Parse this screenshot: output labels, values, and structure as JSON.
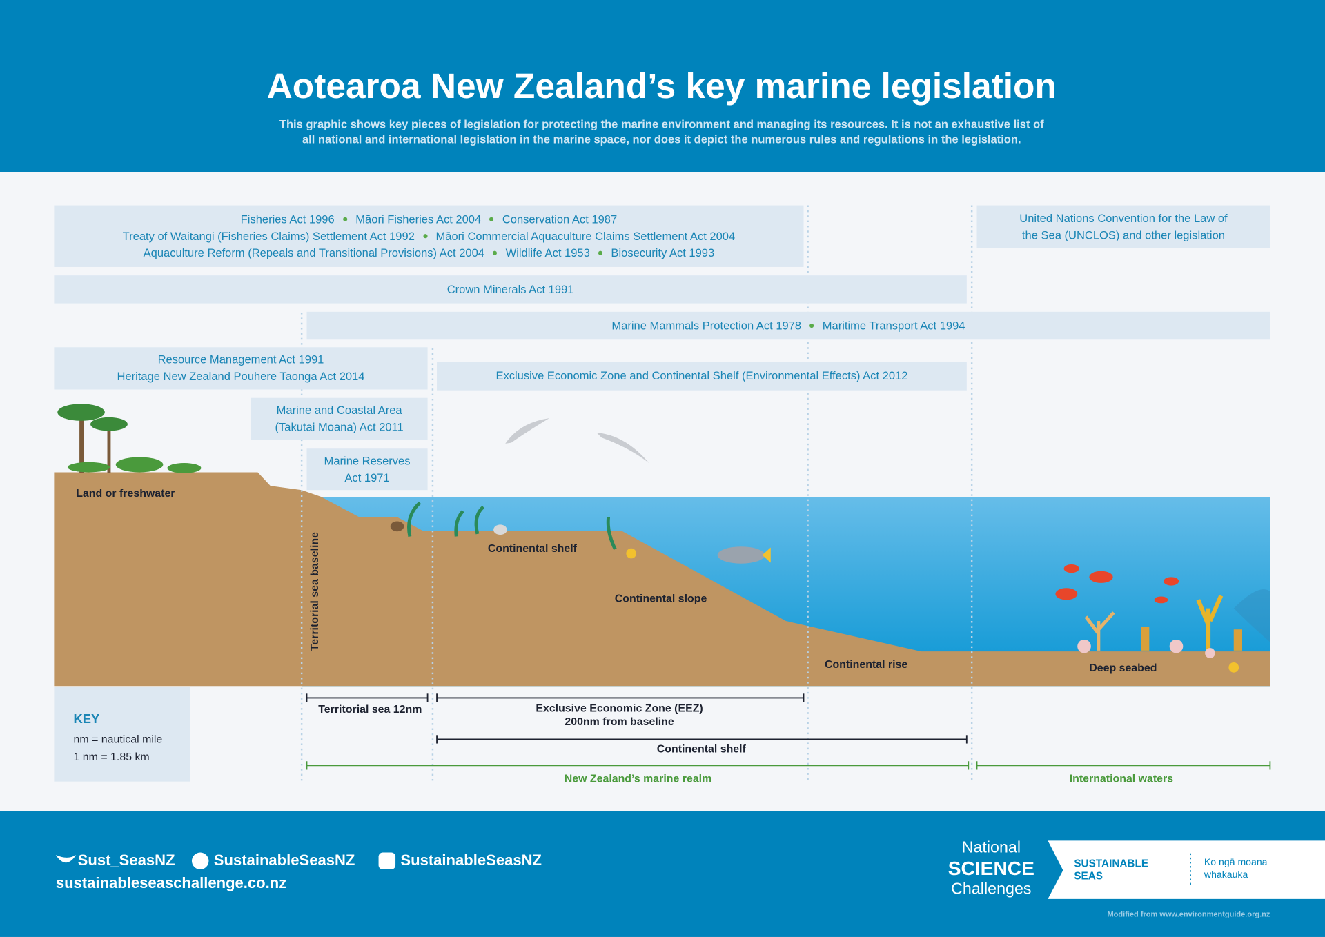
{
  "header": {
    "title": "Aotearoa New Zealand’s key marine legislation",
    "subtitle_lines": [
      "This graphic shows key pieces of legislation for protecting the marine environment and managing its resources. It is not an exhaustive list of",
      "all national and international legislation in the marine space, nor does it depict the numerous rules and regulations in the legislation."
    ]
  },
  "legislation": {
    "boxes": [
      {
        "lines": [
          [
            "Fisheries Act 1996",
            "Māori Fisheries Act 2004",
            "Conservation Act 1987"
          ],
          [
            "Treaty of Waitangi (Fisheries Claims) Settlement Act 1992",
            "Māori Commercial Aquaculture Claims Settlement Act 2004"
          ],
          [
            "Aquaculture Reform (Repeals and Transitional Provisions) Act 2004",
            "Wildlife Act 1953",
            "Biosecurity Act 1993"
          ]
        ]
      },
      {
        "lines": [
          [
            "United Nations Convention for the Law of"
          ],
          [
            "the Sea (UNCLOS) and other legislation"
          ]
        ]
      },
      {
        "lines": [
          [
            "Crown Minerals Act 1991"
          ]
        ]
      },
      {
        "lines": [
          [
            "Marine Mammals Protection Act 1978",
            "Maritime Transport Act 1994"
          ]
        ]
      },
      {
        "lines": [
          [
            "Resource Management Act 1991"
          ],
          [
            "Heritage New Zealand Pouhere Taonga Act 2014"
          ]
        ]
      },
      {
        "lines": [
          [
            "Exclusive Economic Zone and Continental Shelf (Environmental Effects) Act 2012"
          ]
        ]
      },
      {
        "lines": [
          [
            "Marine and Coastal Area"
          ],
          [
            "(Takutai Moana) Act 2011"
          ]
        ]
      },
      {
        "lines": [
          [
            "Marine Reserves"
          ],
          [
            "Act 1971"
          ]
        ]
      }
    ]
  },
  "landscape": {
    "land": "Land or freshwater",
    "baseline": "Territorial sea baseline",
    "shelf": "Continental shelf",
    "slope": "Continental slope",
    "rise": "Continental rise",
    "seabed": "Deep seabed"
  },
  "zones": {
    "territorial": "Territorial sea 12nm",
    "eez": [
      "Exclusive Economic Zone (EEZ)",
      "200nm from baseline"
    ],
    "shelf": "Continental shelf",
    "realm": "New Zealand’s marine realm",
    "international": "International waters"
  },
  "key": {
    "title": "KEY",
    "lines": [
      "nm = nautical mile",
      "1 nm = 1.85 km"
    ]
  },
  "footer": {
    "twitter": "Sust_SeasNZ",
    "facebook": "SustainableSeasNZ",
    "instagram": "SustainableSeasNZ",
    "website": "sustainableseaschallenge.co.nz",
    "logo": {
      "national": "National",
      "science": "SCIENCE",
      "challenges": "Challenges",
      "sustainable": [
        "SUSTAINABLE",
        "SEAS"
      ],
      "maori": [
        "Ko ngā moana",
        "whakauka"
      ]
    },
    "credit": "Modified from www.environmentguide.org.nz"
  }
}
